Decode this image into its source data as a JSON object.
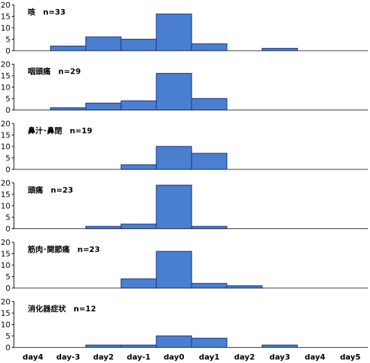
{
  "chart_data": [
    {
      "type": "bar",
      "title": "咳　n=33",
      "categories": [
        "day4",
        "day-3",
        "day2",
        "day-1",
        "day0",
        "day1",
        "day2",
        "day3",
        "day4",
        "day5"
      ],
      "values": [
        0,
        2,
        6,
        5,
        16,
        3,
        0,
        1,
        0,
        0
      ],
      "ylim": [
        0,
        20
      ],
      "yticks": [
        0,
        5,
        10,
        15,
        20
      ]
    },
    {
      "type": "bar",
      "title": "咽頭痛　n=29",
      "categories": [
        "day4",
        "day-3",
        "day2",
        "day-1",
        "day0",
        "day1",
        "day2",
        "day3",
        "day4",
        "day5"
      ],
      "values": [
        0,
        1,
        3,
        4,
        16,
        5,
        0,
        0,
        0,
        0
      ],
      "ylim": [
        0,
        20
      ],
      "yticks": [
        0,
        5,
        10,
        15,
        20
      ]
    },
    {
      "type": "bar",
      "title": "鼻汁･鼻閉　n=19",
      "categories": [
        "day4",
        "day-3",
        "day2",
        "day-1",
        "day0",
        "day1",
        "day2",
        "day3",
        "day4",
        "day5"
      ],
      "values": [
        0,
        0,
        0,
        2,
        10,
        7,
        0,
        0,
        0,
        0
      ],
      "ylim": [
        0,
        20
      ],
      "yticks": [
        0,
        5,
        10,
        15,
        20
      ]
    },
    {
      "type": "bar",
      "title": "頭痛　n=23",
      "categories": [
        "day4",
        "day-3",
        "day2",
        "day-1",
        "day0",
        "day1",
        "day2",
        "day3",
        "day4",
        "day5"
      ],
      "values": [
        0,
        0,
        1,
        2,
        19,
        1,
        0,
        0,
        0,
        0
      ],
      "ylim": [
        0,
        20
      ],
      "yticks": [
        0,
        5,
        10,
        15,
        20
      ]
    },
    {
      "type": "bar",
      "title": "筋肉･関節痛　n=23",
      "categories": [
        "day4",
        "day-3",
        "day2",
        "day-1",
        "day0",
        "day1",
        "day2",
        "day3",
        "day4",
        "day5"
      ],
      "values": [
        0,
        0,
        0,
        4,
        16,
        2,
        1,
        0,
        0,
        0
      ],
      "ylim": [
        0,
        20
      ],
      "yticks": [
        0,
        5,
        10,
        15,
        20
      ]
    },
    {
      "type": "bar",
      "title": "消化器症状　n=12",
      "categories": [
        "day4",
        "day-3",
        "day2",
        "day-1",
        "day0",
        "day1",
        "day2",
        "day3",
        "day4",
        "day5"
      ],
      "values": [
        0,
        0,
        1,
        1,
        5,
        4,
        0,
        1,
        0,
        0
      ],
      "ylim": [
        0,
        20
      ],
      "yticks": [
        0,
        5,
        10,
        15,
        20
      ]
    }
  ],
  "colors": {
    "bar_fill": "#4a7fd0",
    "bar_stroke": "#1f3f95"
  }
}
